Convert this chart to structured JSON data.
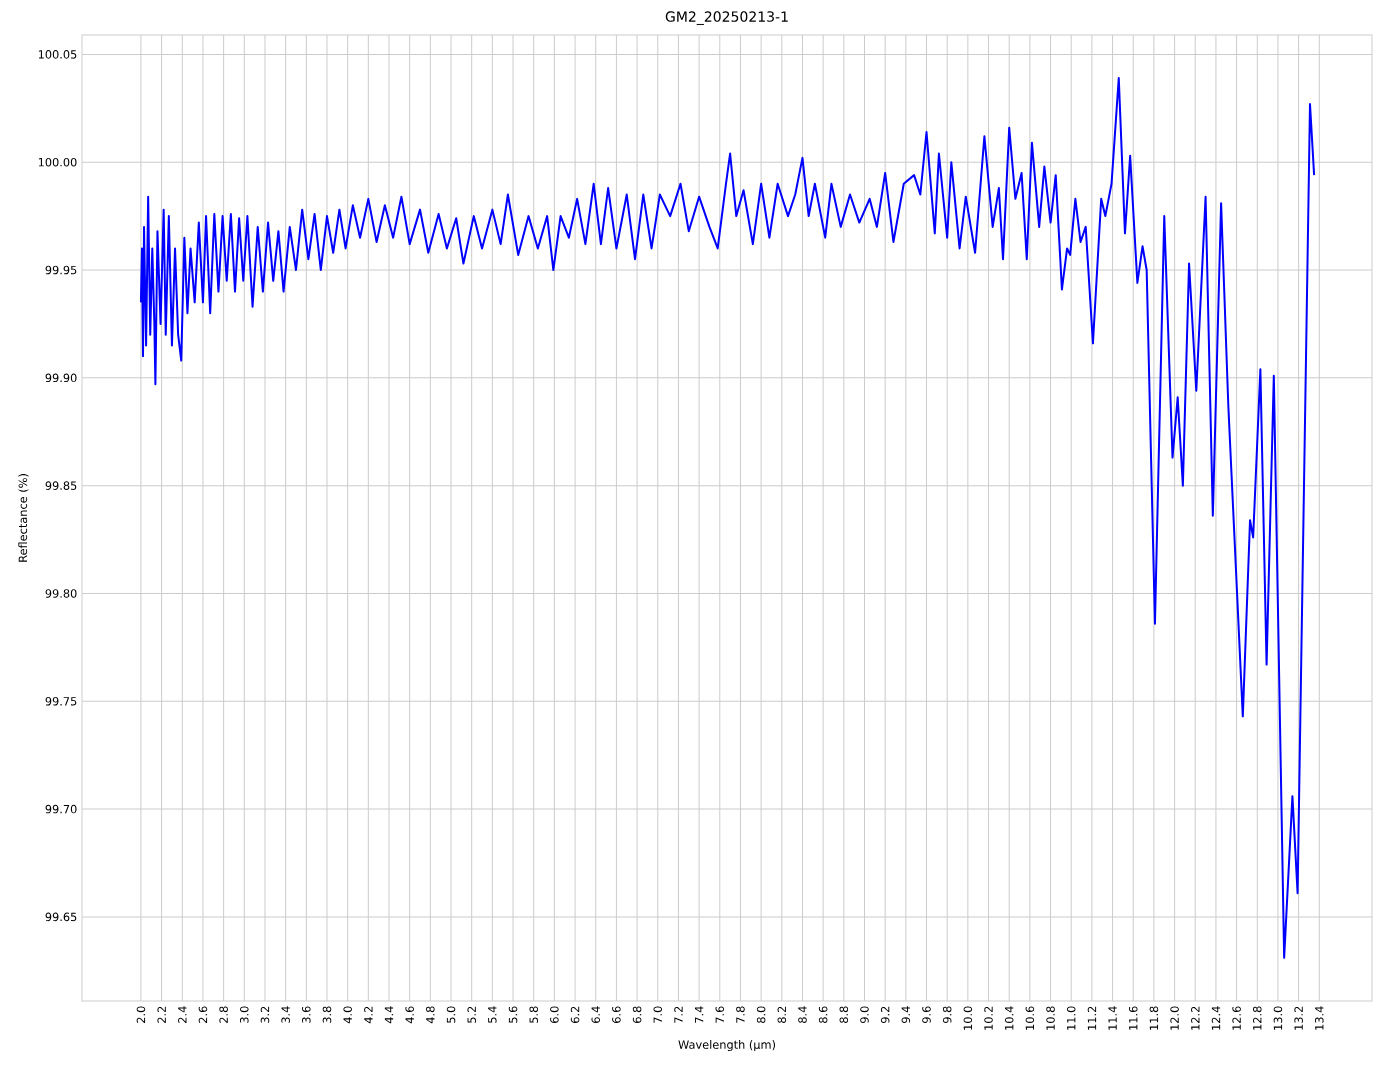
{
  "chart_data": {
    "type": "line",
    "title": "GM2_20250213-1",
    "xlabel": "Wavelength (μm)",
    "ylabel": "Reflectance (%)",
    "color": "#0000ff",
    "grid": true,
    "marker": "none",
    "line_style": "solid",
    "xlim": [
      1.43,
      13.91
    ],
    "ylim": [
      99.611,
      100.059
    ],
    "xticks": [
      {
        "value": 2.0,
        "label": "2.0"
      },
      {
        "value": 2.2,
        "label": "2.2"
      },
      {
        "value": 2.4,
        "label": "2.4"
      },
      {
        "value": 2.6,
        "label": "2.6"
      },
      {
        "value": 2.8,
        "label": "2.8"
      },
      {
        "value": 3.0,
        "label": "3.0"
      },
      {
        "value": 3.2,
        "label": "3.2"
      },
      {
        "value": 3.4,
        "label": "3.4"
      },
      {
        "value": 3.6,
        "label": "3.6"
      },
      {
        "value": 3.8,
        "label": "3.8"
      },
      {
        "value": 4.0,
        "label": "4.0"
      },
      {
        "value": 4.2,
        "label": "4.2"
      },
      {
        "value": 4.4,
        "label": "4.4"
      },
      {
        "value": 4.6,
        "label": "4.6"
      },
      {
        "value": 4.8,
        "label": "4.8"
      },
      {
        "value": 5.0,
        "label": "5.0"
      },
      {
        "value": 5.2,
        "label": "5.2"
      },
      {
        "value": 5.4,
        "label": "5.4"
      },
      {
        "value": 5.6,
        "label": "5.6"
      },
      {
        "value": 5.8,
        "label": "5.8"
      },
      {
        "value": 6.0,
        "label": "6.0"
      },
      {
        "value": 6.2,
        "label": "6.2"
      },
      {
        "value": 6.4,
        "label": "6.4"
      },
      {
        "value": 6.6,
        "label": "6.6"
      },
      {
        "value": 6.8,
        "label": "6.8"
      },
      {
        "value": 7.0,
        "label": "7.0"
      },
      {
        "value": 7.2,
        "label": "7.2"
      },
      {
        "value": 7.4,
        "label": "7.4"
      },
      {
        "value": 7.6,
        "label": "7.6"
      },
      {
        "value": 7.8,
        "label": "7.8"
      },
      {
        "value": 8.0,
        "label": "8.0"
      },
      {
        "value": 8.2,
        "label": "8.2"
      },
      {
        "value": 8.4,
        "label": "8.4"
      },
      {
        "value": 8.6,
        "label": "8.6"
      },
      {
        "value": 8.8,
        "label": "8.8"
      },
      {
        "value": 9.0,
        "label": "9.0"
      },
      {
        "value": 9.2,
        "label": "9.2"
      },
      {
        "value": 9.4,
        "label": "9.4"
      },
      {
        "value": 9.6,
        "label": "9.6"
      },
      {
        "value": 9.8,
        "label": "9.8"
      },
      {
        "value": 10.0,
        "label": "10.0"
      },
      {
        "value": 10.2,
        "label": "10.2"
      },
      {
        "value": 10.4,
        "label": "10.4"
      },
      {
        "value": 10.6,
        "label": "10.6"
      },
      {
        "value": 10.8,
        "label": "10.8"
      },
      {
        "value": 11.0,
        "label": "11.0"
      },
      {
        "value": 11.2,
        "label": "11.2"
      },
      {
        "value": 11.4,
        "label": "11.4"
      },
      {
        "value": 11.6,
        "label": "11.6"
      },
      {
        "value": 11.8,
        "label": "11.8"
      },
      {
        "value": 12.0,
        "label": "12.0"
      },
      {
        "value": 12.2,
        "label": "12.2"
      },
      {
        "value": 12.4,
        "label": "12.4"
      },
      {
        "value": 12.6,
        "label": "12.6"
      },
      {
        "value": 12.8,
        "label": "12.8"
      },
      {
        "value": 13.0,
        "label": "13.0"
      },
      {
        "value": 13.2,
        "label": "13.2"
      },
      {
        "value": 13.4,
        "label": "13.4"
      }
    ],
    "yticks": [
      {
        "value": 99.65,
        "label": "99.65"
      },
      {
        "value": 99.7,
        "label": "99.70"
      },
      {
        "value": 99.75,
        "label": "99.75"
      },
      {
        "value": 99.8,
        "label": "99.80"
      },
      {
        "value": 99.85,
        "label": "99.85"
      },
      {
        "value": 99.9,
        "label": "99.90"
      },
      {
        "value": 99.95,
        "label": "99.95"
      },
      {
        "value": 100.0,
        "label": "100.00"
      },
      {
        "value": 100.05,
        "label": "100.05"
      }
    ],
    "x": [
      2.0,
      2.01,
      2.02,
      2.03,
      2.05,
      2.07,
      2.09,
      2.11,
      2.13,
      2.14,
      2.16,
      2.19,
      2.22,
      2.24,
      2.27,
      2.3,
      2.33,
      2.36,
      2.39,
      2.42,
      2.45,
      2.48,
      2.52,
      2.56,
      2.6,
      2.63,
      2.67,
      2.71,
      2.75,
      2.79,
      2.83,
      2.87,
      2.91,
      2.95,
      2.99,
      3.03,
      3.08,
      3.13,
      3.18,
      3.23,
      3.28,
      3.33,
      3.38,
      3.44,
      3.5,
      3.56,
      3.62,
      3.68,
      3.74,
      3.8,
      3.86,
      3.92,
      3.98,
      4.05,
      4.12,
      4.2,
      4.28,
      4.36,
      4.44,
      4.52,
      4.6,
      4.7,
      4.78,
      4.88,
      4.96,
      5.05,
      5.12,
      5.22,
      5.3,
      5.4,
      5.48,
      5.55,
      5.65,
      5.75,
      5.84,
      5.93,
      5.99,
      6.06,
      6.14,
      6.22,
      6.3,
      6.38,
      6.45,
      6.52,
      6.6,
      6.7,
      6.78,
      6.86,
      6.94,
      7.02,
      7.12,
      7.22,
      7.3,
      7.4,
      7.5,
      7.58,
      7.66,
      7.7,
      7.76,
      7.83,
      7.92,
      8.0,
      8.08,
      8.16,
      8.26,
      8.33,
      8.4,
      8.46,
      8.52,
      8.62,
      8.68,
      8.77,
      8.86,
      8.95,
      9.05,
      9.12,
      9.2,
      9.28,
      9.38,
      9.48,
      9.54,
      9.6,
      9.68,
      9.72,
      9.8,
      9.84,
      9.92,
      9.98,
      10.07,
      10.16,
      10.24,
      10.3,
      10.34,
      10.4,
      10.46,
      10.52,
      10.57,
      10.62,
      10.69,
      10.74,
      10.8,
      10.85,
      10.91,
      10.96,
      10.99,
      11.04,
      11.09,
      11.14,
      11.21,
      11.29,
      11.33,
      11.39,
      11.46,
      11.52,
      11.57,
      11.64,
      11.69,
      11.73,
      11.81,
      11.9,
      11.98,
      12.03,
      12.08,
      12.14,
      12.21,
      12.3,
      12.37,
      12.45,
      12.52,
      12.59,
      12.66,
      12.73,
      12.76,
      12.83,
      12.89,
      12.96,
      13.06,
      13.14,
      13.19,
      13.31,
      13.35
    ],
    "values": [
      99.935,
      99.96,
      99.91,
      99.97,
      99.915,
      99.984,
      99.92,
      99.96,
      99.925,
      99.897,
      99.968,
      99.925,
      99.978,
      99.92,
      99.975,
      99.915,
      99.96,
      99.92,
      99.908,
      99.965,
      99.93,
      99.96,
      99.935,
      99.972,
      99.935,
      99.975,
      99.93,
      99.976,
      99.94,
      99.975,
      99.945,
      99.976,
      99.94,
      99.974,
      99.945,
      99.975,
      99.933,
      99.97,
      99.94,
      99.972,
      99.945,
      99.968,
      99.94,
      99.97,
      99.95,
      99.978,
      99.955,
      99.976,
      99.95,
      99.975,
      99.958,
      99.978,
      99.96,
      99.98,
      99.965,
      99.983,
      99.963,
      99.98,
      99.965,
      99.984,
      99.962,
      99.978,
      99.958,
      99.976,
      99.96,
      99.974,
      99.953,
      99.975,
      99.96,
      99.978,
      99.962,
      99.985,
      99.957,
      99.975,
      99.96,
      99.975,
      99.95,
      99.975,
      99.965,
      99.983,
      99.962,
      99.99,
      99.962,
      99.988,
      99.96,
      99.985,
      99.955,
      99.985,
      99.96,
      99.985,
      99.975,
      99.99,
      99.968,
      99.984,
      99.97,
      99.96,
      99.99,
      100.004,
      99.975,
      99.987,
      99.962,
      99.99,
      99.965,
      99.99,
      99.975,
      99.985,
      100.002,
      99.975,
      99.99,
      99.965,
      99.99,
      99.97,
      99.985,
      99.972,
      99.983,
      99.97,
      99.995,
      99.963,
      99.99,
      99.994,
      99.985,
      100.014,
      99.967,
      100.004,
      99.965,
      100.0,
      99.96,
      99.984,
      99.958,
      100.012,
      99.97,
      99.988,
      99.955,
      100.016,
      99.983,
      99.995,
      99.955,
      100.009,
      99.97,
      99.998,
      99.972,
      99.994,
      99.941,
      99.96,
      99.957,
      99.983,
      99.963,
      99.97,
      99.916,
      99.983,
      99.975,
      99.99,
      100.039,
      99.967,
      100.003,
      99.944,
      99.961,
      99.95,
      99.786,
      99.975,
      99.863,
      99.891,
      99.85,
      99.953,
      99.894,
      99.984,
      99.836,
      99.981,
      99.887,
      99.815,
      99.743,
      99.834,
      99.826,
      99.904,
      99.767,
      99.901,
      99.631,
      99.706,
      99.661,
      100.027,
      99.994
    ]
  }
}
